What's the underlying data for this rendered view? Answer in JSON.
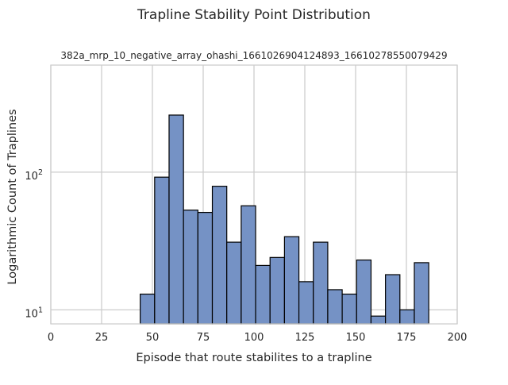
{
  "chart_data": {
    "type": "bar",
    "suptitle": "Trapline Stability Point Distribution",
    "title": "382a_mrp_10_negative_array_ohashi_1661026904124893_16610278550079429",
    "xlabel": "Episode that route stabilites to a trapline",
    "ylabel": "Logarithmic Count of Traplines",
    "xlim": [
      0,
      200
    ],
    "ylim": [
      7.9,
      600
    ],
    "yscale": "log",
    "grid": true,
    "x_ticks": [
      0,
      25,
      50,
      75,
      100,
      125,
      150,
      175,
      200
    ],
    "y_ticks": [
      {
        "value": 10,
        "base": "10",
        "exp": "1"
      },
      {
        "value": 100,
        "base": "10",
        "exp": "2"
      }
    ],
    "bin_edges": [
      44.0,
      51.1,
      58.2,
      65.3,
      72.4,
      79.5,
      86.6,
      93.7,
      100.8,
      107.9,
      115.0,
      122.1,
      129.2,
      136.3,
      143.4,
      150.5,
      157.6,
      164.7,
      171.8,
      178.9,
      186.0
    ],
    "values": [
      13,
      92,
      260,
      53,
      51,
      79,
      31,
      57,
      21,
      24,
      34,
      16,
      31,
      14,
      13,
      23,
      9,
      18,
      10,
      22
    ],
    "bar_color": "#7592c5",
    "edge_color": "#000000"
  }
}
